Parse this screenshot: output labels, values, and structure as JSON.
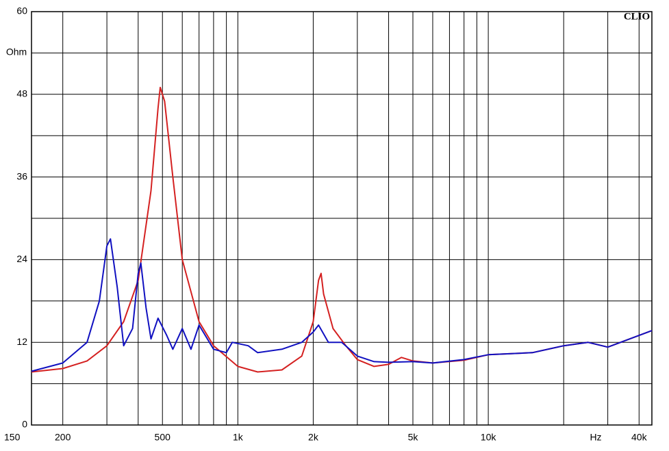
{
  "chart_data": {
    "type": "line",
    "watermark": "CLIO",
    "ylabel": "Ohm",
    "xlabel": "Hz",
    "xscale": "log",
    "grid": true,
    "xlim": [
      150,
      45000
    ],
    "ylim": [
      0,
      60
    ],
    "xticks": [
      150,
      200,
      500,
      {
        "value": 1000,
        "label": "1k"
      },
      {
        "value": 2000,
        "label": "2k"
      },
      {
        "value": 5000,
        "label": "5k"
      },
      {
        "value": 10000,
        "label": "10k"
      },
      {
        "value": 40000,
        "label": "40k"
      }
    ],
    "x_minor_grid": [
      300,
      400,
      600,
      700,
      800,
      900,
      3000,
      4000,
      6000,
      7000,
      8000,
      9000,
      20000,
      30000
    ],
    "yticks": [
      0,
      12,
      24,
      36,
      48,
      60
    ],
    "y_minor_grid": [
      6,
      18,
      30,
      42,
      54
    ],
    "series": [
      {
        "color": "#d42020",
        "x": [
          150,
          200,
          250,
          300,
          350,
          400,
          450,
          480,
          490,
          510,
          550,
          600,
          700,
          800,
          1000,
          1200,
          1500,
          1800,
          2000,
          2100,
          2150,
          2200,
          2400,
          2700,
          3000,
          3500,
          4000,
          4500,
          5000,
          6000,
          8000,
          10000,
          15000,
          20000,
          25000,
          30000,
          45000
        ],
        "values": [
          7.7,
          8.2,
          9.3,
          11.5,
          15,
          21,
          34,
          46,
          49,
          47,
          36,
          24,
          15,
          11.5,
          8.5,
          7.7,
          8.0,
          10,
          15,
          21,
          22,
          19,
          14,
          11.5,
          9.5,
          8.5,
          8.8,
          9.8,
          9.3,
          9,
          9.4,
          10.2,
          10.5,
          11.5,
          12,
          11.3,
          13.7
        ]
      },
      {
        "color": "#1010c0",
        "x": [
          150,
          200,
          250,
          280,
          300,
          310,
          330,
          350,
          380,
          400,
          410,
          430,
          450,
          480,
          520,
          550,
          600,
          650,
          700,
          800,
          900,
          950,
          1100,
          1200,
          1500,
          1800,
          2000,
          2100,
          2300,
          2600,
          3000,
          3500,
          4000,
          5000,
          6000,
          8000,
          10000,
          15000,
          20000,
          25000,
          30000,
          45000
        ],
        "values": [
          7.8,
          9,
          12,
          18,
          26,
          27,
          20,
          11.5,
          14,
          22,
          23.5,
          17,
          12.5,
          15.5,
          13,
          11,
          14,
          11,
          14.5,
          11,
          10.5,
          12,
          11.5,
          10.5,
          11,
          12,
          13.5,
          14.5,
          12,
          12,
          10,
          9.2,
          9.1,
          9.2,
          9,
          9.5,
          10.2,
          10.5,
          11.5,
          12,
          11.3,
          13.7
        ]
      }
    ]
  }
}
